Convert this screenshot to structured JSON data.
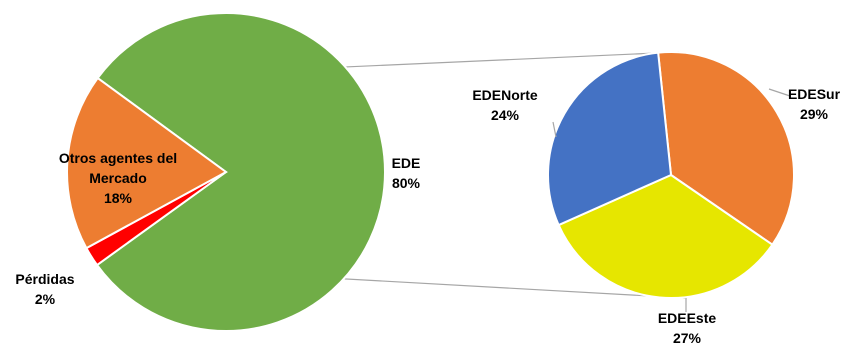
{
  "chart_data": {
    "type": "pie",
    "subtype": "pie-of-pie",
    "main": {
      "slices": [
        {
          "name": "EDE",
          "value": 80,
          "label": "80%",
          "color": "#70AD47"
        },
        {
          "name": "Pérdidas",
          "value": 2,
          "label": "2%",
          "color": "#FF0000"
        },
        {
          "name": "Otros agentes del Mercado",
          "value": 18,
          "label": "18%",
          "color": "#ED7D31"
        }
      ]
    },
    "secondary": {
      "parent": "EDE",
      "slices": [
        {
          "name": "EDESur",
          "value": 29,
          "label": "29%",
          "color": "#ED7D31"
        },
        {
          "name": "EDEEste",
          "value": 27,
          "label": "27%",
          "color": "#E6E600"
        },
        {
          "name": "EDENorte",
          "value": 24,
          "label": "24%",
          "color": "#4472C4"
        }
      ]
    },
    "labels": {
      "main": [
        {
          "lines": [
            "EDE",
            "80%"
          ]
        },
        {
          "lines": [
            "Pérdidas",
            "2%"
          ]
        },
        {
          "lines": [
            "Otros agentes del",
            "Mercado",
            "18%"
          ]
        }
      ],
      "secondary": [
        {
          "lines": [
            "EDESur",
            "29%"
          ]
        },
        {
          "lines": [
            "EDEEste",
            "27%"
          ]
        },
        {
          "lines": [
            "EDENorte",
            "24%"
          ]
        }
      ]
    },
    "legend": "none"
  }
}
